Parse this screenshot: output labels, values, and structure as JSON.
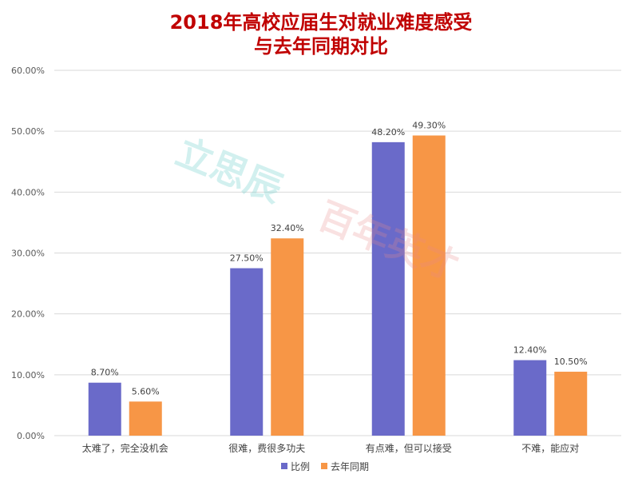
{
  "watermarks": [
    "立思辰",
    "百年英才"
  ],
  "chart_data": {
    "type": "bar",
    "title_lines": [
      "2018年高校应届生对就业难度感受",
      "与去年同期对比"
    ],
    "categories": [
      "太难了，完全没机会",
      "很难，费很多功夫",
      "有点难，但可以接受",
      "不难，能应对"
    ],
    "series": [
      {
        "name": "比例",
        "color": "#6a6ac9",
        "values": [
          8.7,
          27.5,
          48.2,
          12.4
        ]
      },
      {
        "name": "去年同期",
        "color": "#f79646",
        "values": [
          5.6,
          32.4,
          49.3,
          10.5
        ]
      }
    ],
    "ylim": [
      0,
      60
    ],
    "yticks": [
      "0.00%",
      "10.00%",
      "20.00%",
      "30.00%",
      "40.00%",
      "50.00%",
      "60.00%"
    ],
    "data_labels": [
      [
        "8.70%",
        "27.50%",
        "48.20%",
        "12.40%"
      ],
      [
        "5.60%",
        "32.40%",
        "49.30%",
        "10.50%"
      ]
    ],
    "grid": true,
    "legend": "bottom-center"
  }
}
